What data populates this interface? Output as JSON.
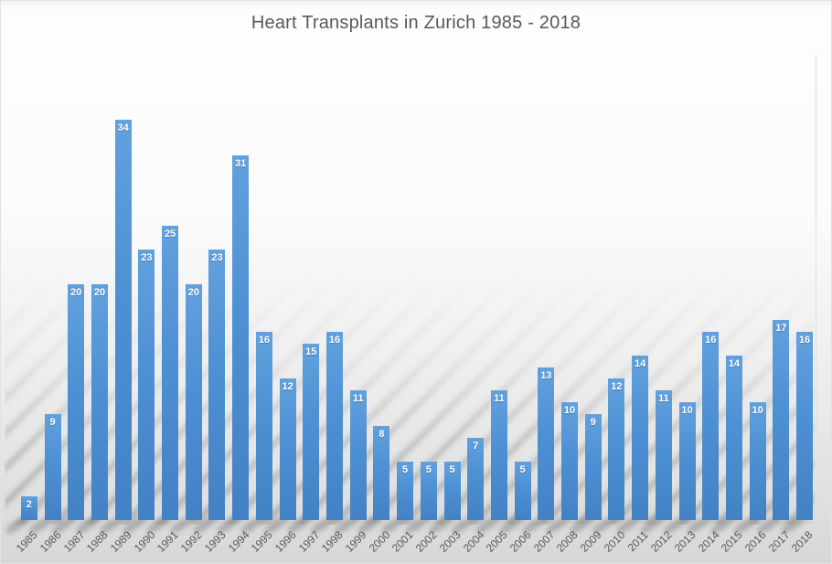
{
  "chart_data": {
    "type": "bar",
    "title": "Heart Transplants in Zurich 1985 - 2018",
    "categories": [
      "1985",
      "1986",
      "1987",
      "1988",
      "1989",
      "1990",
      "1991",
      "1992",
      "1993",
      "1994",
      "1995",
      "1996",
      "1997",
      "1998",
      "1999",
      "2000",
      "2001",
      "2002",
      "2003",
      "2004",
      "2005",
      "2006",
      "2007",
      "2008",
      "2009",
      "2010",
      "2011",
      "2012",
      "2013",
      "2014",
      "2015",
      "2016",
      "2017",
      "2018"
    ],
    "values": [
      2,
      9,
      20,
      20,
      34,
      23,
      25,
      20,
      23,
      31,
      16,
      12,
      15,
      16,
      11,
      8,
      5,
      5,
      5,
      7,
      11,
      5,
      13,
      10,
      9,
      12,
      14,
      11,
      10,
      16,
      14,
      10,
      17,
      16
    ],
    "xlabel": "",
    "ylabel": "",
    "ylim": [
      0,
      34
    ],
    "gridlines": false,
    "legend": "none",
    "y_axis_visible": false,
    "data_labels": "inside-end",
    "x_label_rotation_deg": -45,
    "colors": {
      "bar_fill": "#4d90d3",
      "bar_fill_top": "#61a1dd",
      "bar_fill_bottom": "#4282c4",
      "data_label": "#ffffff",
      "axis_label": "#595959",
      "title": "#595959",
      "background_top": "#fdfdfd",
      "background_bottom": "#d7d7d7",
      "shadow": "#707070"
    }
  }
}
